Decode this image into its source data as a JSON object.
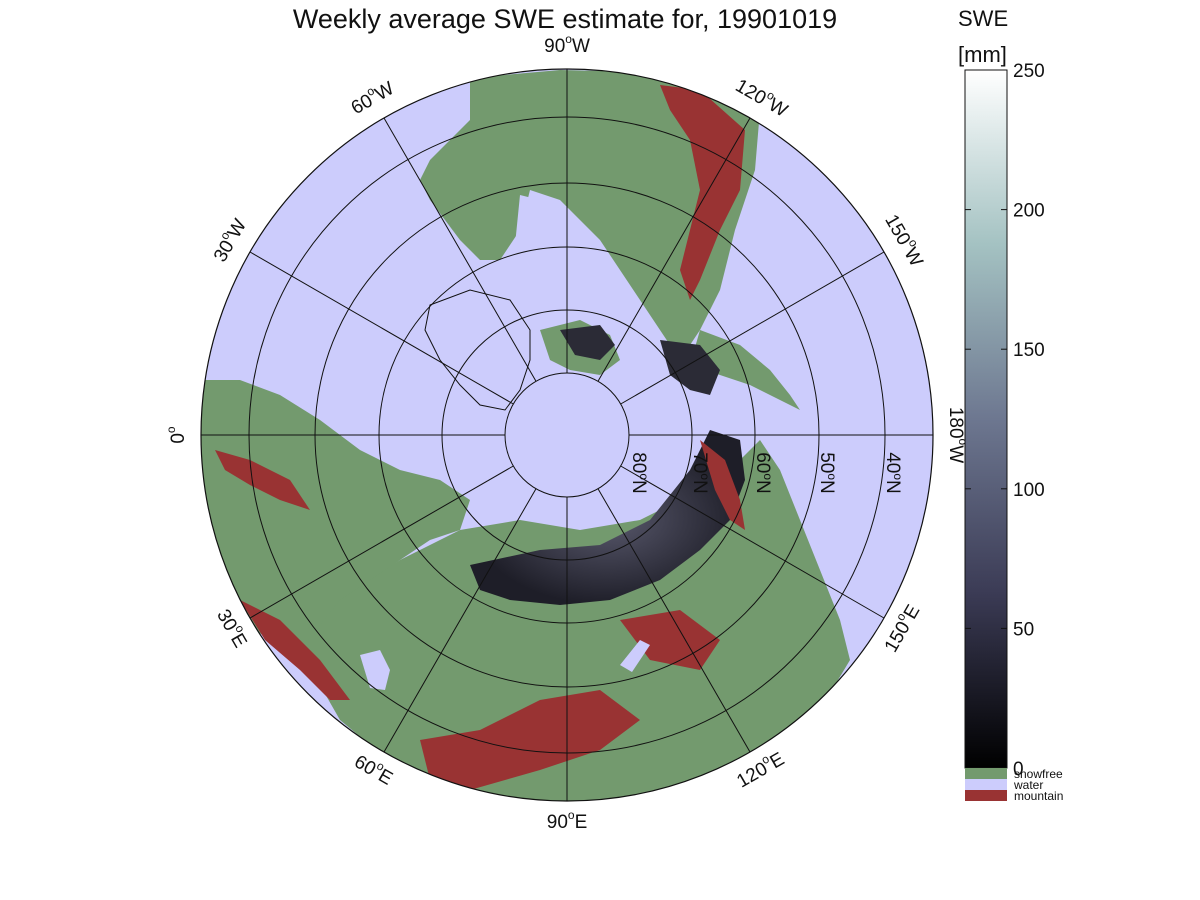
{
  "title": "Weekly average SWE estimate for, 19901019",
  "colorbar": {
    "label_line1": "SWE",
    "label_line2": "[mm]",
    "ticks": [
      "0",
      "50",
      "100",
      "150",
      "200",
      "250"
    ],
    "range": [
      0,
      250
    ],
    "categories": [
      {
        "label": "snowfree",
        "color": "#739a6e"
      },
      {
        "label": "water",
        "color": "#ccccfc"
      },
      {
        "label": "mountain",
        "color": "#993333"
      }
    ]
  },
  "map": {
    "projection": "north polar stereographic",
    "center_latitude": 90,
    "water_color": "#ccccfc",
    "land_color": "#739a6e",
    "mountain_color": "#993333",
    "longitude_labels": [
      {
        "lon": "90",
        "hemi": "W"
      },
      {
        "lon": "60",
        "hemi": "W"
      },
      {
        "lon": "30",
        "hemi": "W"
      },
      {
        "lon": "0",
        "hemi": ""
      },
      {
        "lon": "30",
        "hemi": "E"
      },
      {
        "lon": "60",
        "hemi": "E"
      },
      {
        "lon": "90",
        "hemi": "E"
      },
      {
        "lon": "120",
        "hemi": "E"
      },
      {
        "lon": "150",
        "hemi": "E"
      },
      {
        "lon": "180",
        "hemi": "W"
      },
      {
        "lon": "150",
        "hemi": "W"
      },
      {
        "lon": "120",
        "hemi": "W"
      }
    ],
    "latitude_labels": [
      {
        "lat": "80",
        "hemi": "N"
      },
      {
        "lat": "70",
        "hemi": "N"
      },
      {
        "lat": "60",
        "hemi": "N"
      },
      {
        "lat": "50",
        "hemi": "N"
      },
      {
        "lat": "40",
        "hemi": "N"
      }
    ]
  }
}
